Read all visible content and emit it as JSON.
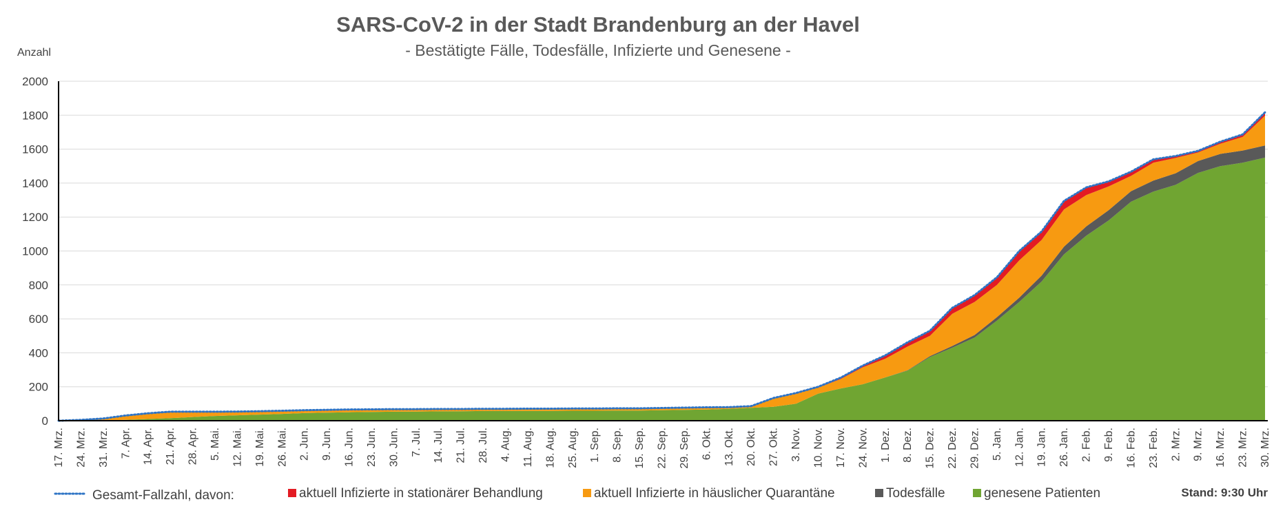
{
  "chart_data": {
    "type": "area",
    "title": "SARS-CoV-2 in der Stadt Brandenburg an der Havel",
    "subtitle": "- Bestätigte Fälle, Todesfälle, Infizierte und Genesene -",
    "ylabel": "Anzahl",
    "ylim": [
      0,
      2000
    ],
    "yticks": [
      0,
      200,
      400,
      600,
      800,
      1000,
      1200,
      1400,
      1600,
      1800,
      2000
    ],
    "grid": true,
    "legend_placement": "bottom",
    "stand_label": "Stand: 9:30 Uhr",
    "x_dates": [
      "17. Mrz.",
      "24. Mrz.",
      "31. Mrz.",
      "7. Apr.",
      "14. Apr.",
      "21. Apr.",
      "28. Apr.",
      "5. Mai.",
      "12. Mai.",
      "19. Mai.",
      "26. Mai.",
      "2. Jun.",
      "9. Jun.",
      "16. Jun.",
      "23. Jun.",
      "30. Jun.",
      "7. Jul.",
      "14. Jul.",
      "21. Jul.",
      "28. Jul.",
      "4. Aug.",
      "11. Aug.",
      "18. Aug.",
      "25. Aug.",
      "1. Sep.",
      "8. Sep.",
      "15. Sep.",
      "22. Sep.",
      "29. Sep.",
      "6. Okt.",
      "13. Okt.",
      "20. Okt.",
      "27. Okt.",
      "3. Nov.",
      "10. Nov.",
      "17. Nov.",
      "24. Nov.",
      "1. Dez.",
      "8. Dez.",
      "15. Dez.",
      "22. Dez.",
      "29. Dez.",
      "5. Jan.",
      "12. Jan.",
      "19. Jan.",
      "26. Jan.",
      "2. Feb.",
      "9. Feb.",
      "16. Feb.",
      "23. Feb.",
      "2. Mrz.",
      "9. Mrz.",
      "16. Mrz.",
      "23. Mrz.",
      "30. Mrz."
    ],
    "series": [
      {
        "name": "genesene Patienten",
        "color": "#70a532",
        "values": [
          0,
          0,
          1,
          5,
          10,
          15,
          22,
          28,
          32,
          36,
          40,
          45,
          48,
          50,
          52,
          53,
          54,
          55,
          56,
          57,
          57,
          58,
          58,
          59,
          59,
          60,
          60,
          62,
          64,
          66,
          70,
          76,
          82,
          100,
          160,
          190,
          215,
          255,
          295,
          375,
          430,
          490,
          590,
          700,
          820,
          980,
          1090,
          1180,
          1290,
          1350,
          1390,
          1460,
          1500,
          1520,
          1550
        ]
      },
      {
        "name": "Todesfälle",
        "color": "#595959",
        "values": [
          0,
          0,
          0,
          0,
          0,
          0,
          0,
          0,
          0,
          0,
          0,
          0,
          0,
          0,
          0,
          0,
          0,
          0,
          0,
          0,
          0,
          0,
          0,
          0,
          0,
          0,
          0,
          0,
          0,
          0,
          0,
          0,
          0,
          0,
          0,
          0,
          0,
          0,
          2,
          5,
          10,
          15,
          20,
          25,
          35,
          45,
          55,
          60,
          62,
          65,
          68,
          70,
          72,
          72,
          72
        ]
      },
      {
        "name": "aktuell Infizierte in häuslicher Quarantäne",
        "color": "#f79a11",
        "values": [
          0,
          5,
          12,
          25,
          32,
          35,
          28,
          22,
          20,
          18,
          17,
          15,
          14,
          14,
          13,
          13,
          12,
          12,
          11,
          11,
          11,
          11,
          11,
          11,
          11,
          11,
          11,
          11,
          11,
          11,
          8,
          8,
          50,
          60,
          35,
          55,
          100,
          110,
          140,
          120,
          190,
          195,
          190,
          220,
          210,
          220,
          185,
          140,
          90,
          105,
          90,
          50,
          60,
          80,
          175
        ]
      },
      {
        "name": "aktuell Infizierte in stationärer Behandlung",
        "color": "#e31b23",
        "values": [
          0,
          0,
          0,
          1,
          2,
          3,
          3,
          3,
          2,
          2,
          2,
          2,
          2,
          2,
          2,
          2,
          2,
          2,
          2,
          2,
          2,
          2,
          2,
          2,
          2,
          2,
          2,
          2,
          2,
          2,
          2,
          2,
          2,
          3,
          5,
          8,
          10,
          20,
          25,
          30,
          35,
          40,
          45,
          55,
          50,
          50,
          45,
          30,
          25,
          20,
          12,
          10,
          12,
          15,
          20
        ]
      }
    ],
    "total_line": {
      "name": "Gesamt-Fallzahl, davon:",
      "color": "#2e74c5",
      "values": [
        0,
        5,
        13,
        31,
        44,
        53,
        53,
        53,
        54,
        56,
        59,
        62,
        64,
        66,
        67,
        68,
        68,
        69,
        69,
        70,
        70,
        71,
        71,
        72,
        72,
        73,
        73,
        75,
        77,
        79,
        80,
        86,
        134,
        163,
        200,
        253,
        325,
        385,
        462,
        530,
        665,
        740,
        845,
        1000,
        1115,
        1295,
        1375,
        1410,
        1467,
        1540,
        1560,
        1590,
        1644,
        1687,
        1817
      ]
    },
    "legend": [
      {
        "label": "Gesamt-Fallzahl, davon:",
        "kind": "line",
        "color": "#2e74c5"
      },
      {
        "label": "aktuell Infizierte in stationärer Behandlung",
        "kind": "box",
        "color": "#e31b23"
      },
      {
        "label": "aktuell Infizierte in häuslicher Quarantäne",
        "kind": "box",
        "color": "#f79a11"
      },
      {
        "label": "Todesfälle",
        "kind": "box",
        "color": "#595959"
      },
      {
        "label": "genesene Patienten",
        "kind": "box",
        "color": "#70a532"
      }
    ]
  }
}
